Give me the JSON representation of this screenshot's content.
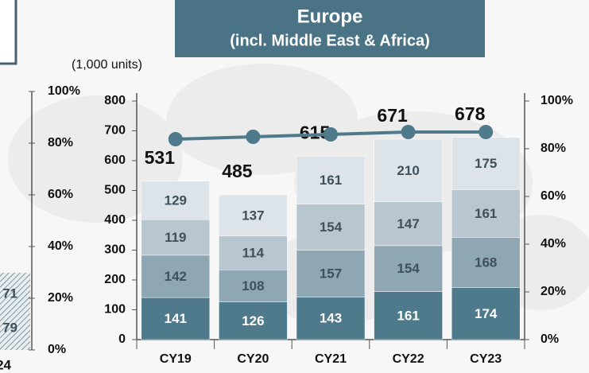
{
  "chart_data": {
    "type": "bar_line",
    "title": "Europe",
    "subtitle": "(incl. Middle East & Africa)",
    "unit_label": "(1,000 units)",
    "categories": [
      "CY19",
      "CY20",
      "CY21",
      "CY22",
      "CY23"
    ],
    "series": [
      {
        "color": "#4e7a8c",
        "label_color": "#ffffff",
        "values": [
          141,
          126,
          143,
          161,
          174
        ]
      },
      {
        "color": "#8fa6b3",
        "label_color": "#3f505b",
        "values": [
          142,
          108,
          157,
          154,
          168
        ]
      },
      {
        "color": "#b7c6cf",
        "label_color": "#3f505b",
        "values": [
          119,
          114,
          154,
          147,
          161
        ]
      },
      {
        "color": "#dde4e9",
        "label_color": "#3f505b",
        "values": [
          129,
          137,
          161,
          210,
          175
        ]
      },
      {
        "type": "line",
        "axis": "y2",
        "color": "#4e7a8c",
        "values": [
          84,
          85,
          86,
          87,
          87
        ]
      }
    ],
    "totals": [
      531,
      485,
      615,
      671,
      678
    ],
    "ylim": [
      0,
      800
    ],
    "yticks": [
      0,
      100,
      200,
      300,
      400,
      500,
      600,
      700,
      800
    ],
    "y2lim": [
      0,
      100
    ],
    "y2ticks": [
      {
        "value": 0,
        "label": "0%"
      },
      {
        "value": 20,
        "label": "20%"
      },
      {
        "value": 40,
        "label": "40%"
      },
      {
        "value": 60,
        "label": "60%"
      },
      {
        "value": 80,
        "label": "80%"
      },
      {
        "value": 100,
        "label": "100%"
      }
    ]
  },
  "fragment": {
    "ylim": [
      0,
      100
    ],
    "yticks": [
      {
        "value": 0,
        "label": "0%"
      },
      {
        "value": 20,
        "label": "20%"
      },
      {
        "value": 40,
        "label": "40%"
      },
      {
        "value": 60,
        "label": "60%"
      },
      {
        "value": 80,
        "label": "80%"
      },
      {
        "value": 100,
        "label": "100%"
      }
    ],
    "texts": [
      "71",
      "79",
      "24"
    ]
  }
}
